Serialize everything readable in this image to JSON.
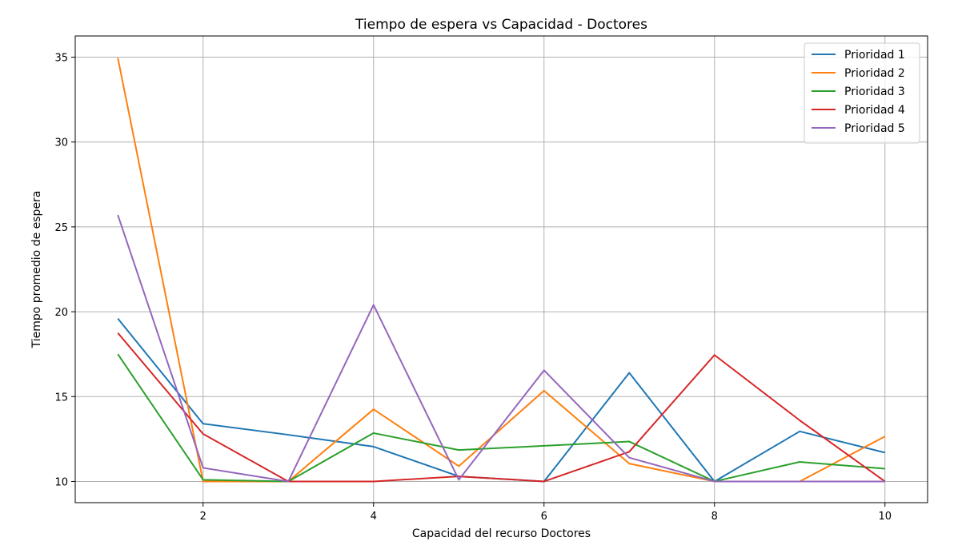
{
  "chart_data": {
    "type": "line",
    "title": "Tiempo de espera vs Capacidad - Doctores",
    "xlabel": "Capacidad del recurso Doctores",
    "ylabel": "Tiempo promedio de espera",
    "x": [
      1,
      2,
      3,
      4,
      5,
      6,
      7,
      8,
      9,
      10
    ],
    "xlim": [
      0.5,
      10.5
    ],
    "ylim": [
      8.75,
      36.25
    ],
    "xticks": [
      2,
      4,
      6,
      8,
      10
    ],
    "yticks": [
      10,
      15,
      20,
      25,
      30,
      35
    ],
    "grid": true,
    "legend_position": "top-right",
    "series": [
      {
        "name": "Prioridad 1",
        "color": "#1f77b4",
        "values": [
          19.6,
          13.4,
          12.75,
          12.05,
          10.3,
          10.0,
          16.4,
          10.0,
          12.95,
          11.7
        ]
      },
      {
        "name": "Prioridad 2",
        "color": "#ff7f0e",
        "values": [
          34.95,
          10.0,
          10.0,
          14.25,
          10.9,
          15.35,
          11.05,
          10.0,
          10.0,
          12.65
        ]
      },
      {
        "name": "Prioridad 3",
        "color": "#2ca02c",
        "values": [
          17.5,
          10.1,
          10.0,
          12.85,
          11.85,
          12.1,
          12.35,
          10.0,
          11.15,
          10.75
        ]
      },
      {
        "name": "Prioridad 4",
        "color": "#d62728",
        "values": [
          18.75,
          12.8,
          10.0,
          10.0,
          10.3,
          10.0,
          11.75,
          17.45,
          13.6,
          10.0
        ]
      },
      {
        "name": "Prioridad 5",
        "color": "#9467bd",
        "values": [
          25.7,
          10.8,
          10.0,
          20.4,
          10.1,
          16.55,
          11.4,
          10.0,
          10.0,
          10.0
        ]
      }
    ]
  }
}
